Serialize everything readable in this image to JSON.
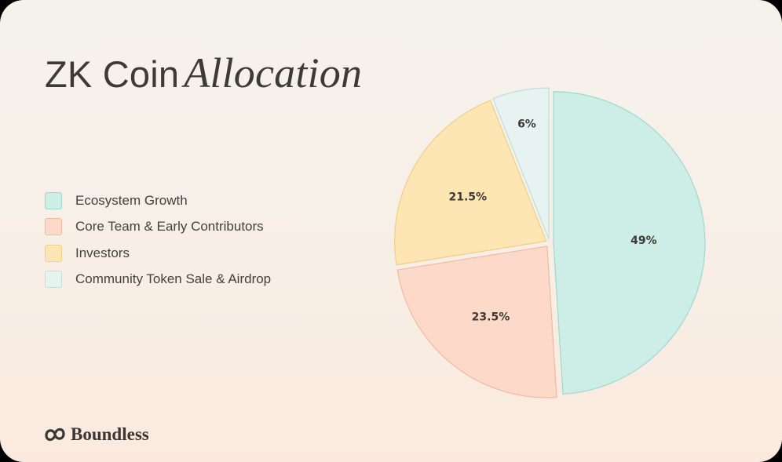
{
  "title": {
    "main": "ZK Coin",
    "accent": "Allocation"
  },
  "brand": {
    "name": "Boundless",
    "icon": "boundless-logo-icon"
  },
  "chart_data": {
    "type": "pie",
    "title": "ZK Coin Allocation",
    "legend_position": "left",
    "slices": [
      {
        "label": "Ecosystem Growth",
        "value": 49,
        "display": "49%",
        "color": "#cdeee6",
        "stroke": "#9fd8cc"
      },
      {
        "label": "Core Team & Early Contributors",
        "value": 23.5,
        "display": "23.5%",
        "color": "#fdd9c9",
        "stroke": "#f2b9a2"
      },
      {
        "label": "Investors",
        "value": 21.5,
        "display": "21.5%",
        "color": "#fde6b3",
        "stroke": "#efcf86"
      },
      {
        "label": "Community Token Sale & Airdrop",
        "value": 6,
        "display": "6%",
        "color": "#e6f3f0",
        "stroke": "#bfe0d8"
      }
    ]
  }
}
